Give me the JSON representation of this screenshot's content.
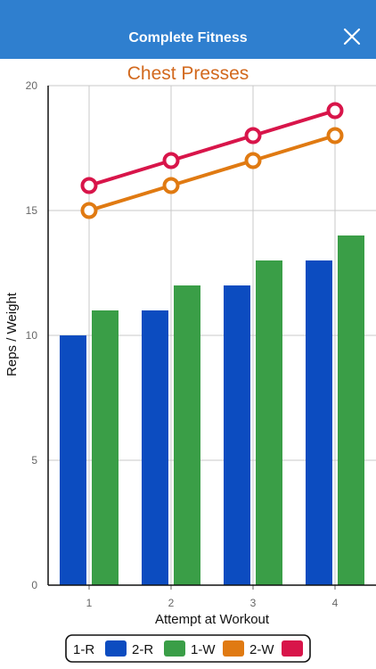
{
  "header": {
    "title": "Complete Fitness",
    "close_icon": "close-icon"
  },
  "colors": {
    "header_bg": "#2f7fcf",
    "title": "#d2691e",
    "series_1R": "#0c4cc0",
    "series_2R": "#3a9e47",
    "series_1W": "#e07a12",
    "series_2W": "#d8154a"
  },
  "chart_data": {
    "type": "bar",
    "title": "Chest Presses",
    "xlabel": "Attempt at Workout",
    "ylabel": "Reps / Weight",
    "categories": [
      "1",
      "2",
      "3",
      "4"
    ],
    "ylim": [
      0,
      20
    ],
    "yticks": [
      "0",
      "5",
      "10",
      "15",
      "20"
    ],
    "grid": true,
    "legend_position": "bottom",
    "series": [
      {
        "name": "1-R",
        "kind": "bar",
        "color": "#0c4cc0",
        "values": [
          10,
          11,
          12,
          13
        ]
      },
      {
        "name": "2-R",
        "kind": "bar",
        "color": "#3a9e47",
        "values": [
          11,
          12,
          13,
          14
        ]
      },
      {
        "name": "1-W",
        "kind": "line",
        "color": "#e07a12",
        "values": [
          15,
          16,
          17,
          18
        ]
      },
      {
        "name": "2-W",
        "kind": "line",
        "color": "#d8154a",
        "values": [
          16,
          17,
          18,
          19
        ]
      }
    ]
  }
}
